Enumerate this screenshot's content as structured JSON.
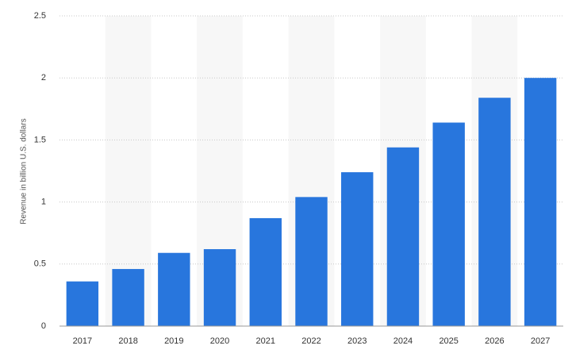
{
  "chart_data": {
    "type": "bar",
    "y_label": "Revenue in billion U.S. dollars",
    "categories": [
      "2017",
      "2018",
      "2019",
      "2020",
      "2021",
      "2022",
      "2023",
      "2024",
      "2025",
      "2026",
      "2027"
    ],
    "values": [
      0.36,
      0.46,
      0.59,
      0.62,
      0.87,
      1.04,
      1.24,
      1.44,
      1.64,
      1.84,
      2.0
    ],
    "color": "#2876dd",
    "ylim": [
      0,
      2.5
    ],
    "yticks": [
      0,
      0.5,
      1,
      1.5,
      2,
      2.5
    ],
    "grid": true
  }
}
